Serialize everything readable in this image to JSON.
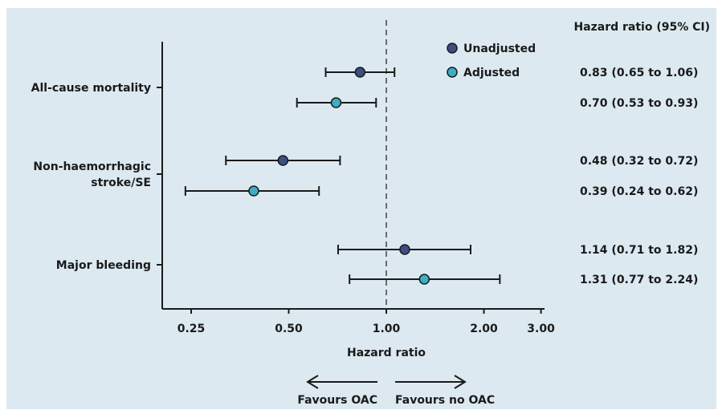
{
  "chart_data": {
    "type": "forest",
    "xlabel": "Hazard ratio",
    "x_scale": "log",
    "xlim": [
      0.2,
      3.2
    ],
    "xticks": [
      0.25,
      0.5,
      1.0,
      2.0,
      3.0
    ],
    "xtick_labels": [
      "0.25",
      "0.50",
      "1.00",
      "2.00",
      "3.00"
    ],
    "reference_line": 1.0,
    "legend_position": "top-right",
    "table_header": "Hazard ratio (95% CI)",
    "series": [
      {
        "name": "Unadjusted",
        "color": "#3b4f84"
      },
      {
        "name": "Adjusted",
        "color": "#3aafc6"
      }
    ],
    "groups": [
      {
        "label_lines": [
          "All-cause mortality"
        ],
        "rows": [
          {
            "series": "Unadjusted",
            "hr": 0.83,
            "lo": 0.65,
            "hi": 1.06,
            "text": "0.83 (0.65 to 1.06)"
          },
          {
            "series": "Adjusted",
            "hr": 0.7,
            "lo": 0.53,
            "hi": 0.93,
            "text": "0.70 (0.53 to 0.93)"
          }
        ]
      },
      {
        "label_lines": [
          "Non-haemorrhagic",
          "stroke/SE"
        ],
        "rows": [
          {
            "series": "Unadjusted",
            "hr": 0.48,
            "lo": 0.32,
            "hi": 0.72,
            "text": "0.48 (0.32 to 0.72)"
          },
          {
            "series": "Adjusted",
            "hr": 0.39,
            "lo": 0.24,
            "hi": 0.62,
            "text": "0.39 (0.24 to 0.62)"
          }
        ]
      },
      {
        "label_lines": [
          "Major bleeding"
        ],
        "rows": [
          {
            "series": "Unadjusted",
            "hr": 1.14,
            "lo": 0.71,
            "hi": 1.82,
            "text": "1.14 (0.71 to 1.82)"
          },
          {
            "series": "Adjusted",
            "hr": 1.31,
            "lo": 0.77,
            "hi": 2.24,
            "text": "1.31 (0.77 to 2.24)"
          }
        ]
      }
    ],
    "direction_labels": {
      "left": "Favours OAC",
      "right": "Favours no OAC"
    }
  }
}
